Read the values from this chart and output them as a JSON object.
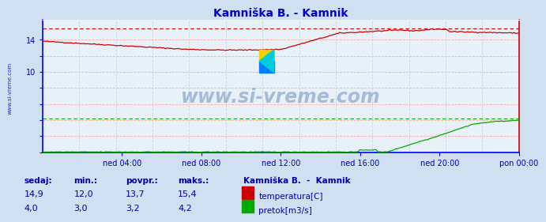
{
  "title": "Kamniška B. - Kamnik",
  "title_color": "#0000cc",
  "bg_color": "#d0e0f0",
  "plot_bg_color": "#e8f0f8",
  "grid_color_h": "#ffaaaa",
  "grid_color_v": "#c8d4e0",
  "x_labels": [
    "ned 04:00",
    "ned 08:00",
    "ned 12:00",
    "ned 16:00",
    "ned 20:00",
    "pon 00:00"
  ],
  "y_ticks": [
    0,
    2,
    4,
    6,
    8,
    10,
    12,
    14
  ],
  "ylim": [
    0,
    16.5
  ],
  "n_points": 288,
  "temp_max": 15.4,
  "flow_max": 4.2,
  "temp_color": "#cc0000",
  "flow_color": "#00aa00",
  "border_left_color": "#0000ff",
  "border_bottom_color": "#0000ff",
  "border_right_color": "#cc0000",
  "border_top_color": "#ffffff",
  "watermark_text": "www.si-vreme.com",
  "watermark_color": "#7090c0",
  "watermark_alpha": 0.55,
  "label_color": "#0000aa",
  "legend_title": "Kamniška B.  -  Kamnik",
  "stat_labels": [
    "sedaj:",
    "min.:",
    "povpr.:",
    "maks.:"
  ],
  "stat_temp": [
    "14,9",
    "12,0",
    "13,7",
    "15,4"
  ],
  "stat_flow": [
    "4,0",
    "3,0",
    "3,2",
    "4,2"
  ],
  "legend_items": [
    "temperatura[C]",
    "pretok[m3/s]"
  ],
  "legend_colors": [
    "#cc0000",
    "#00aa00"
  ]
}
